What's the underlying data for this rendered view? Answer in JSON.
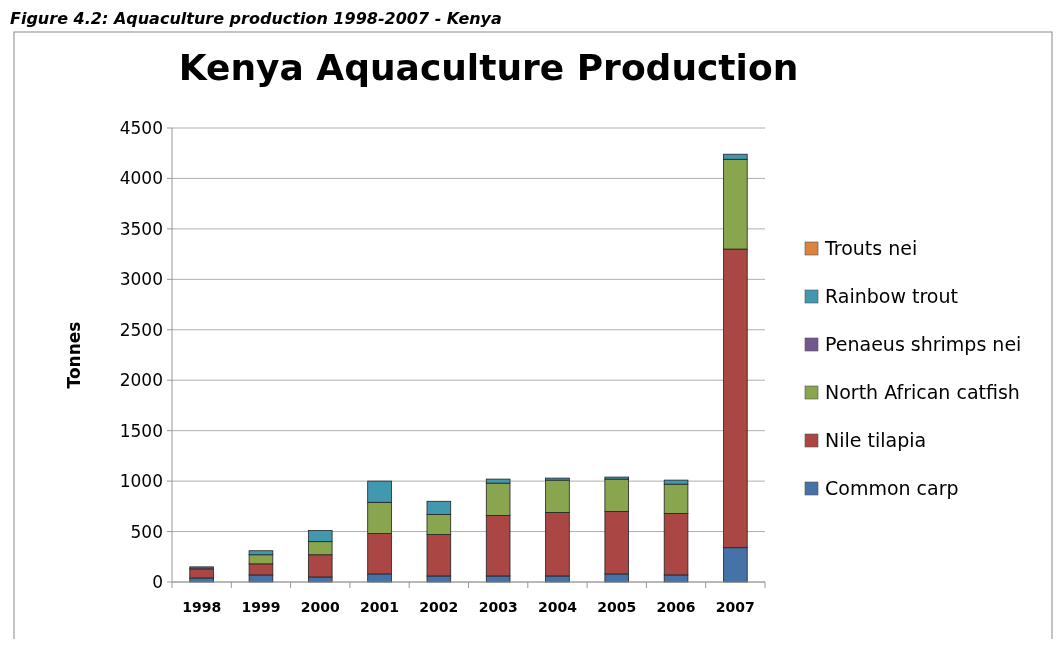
{
  "chart_data": {
    "type": "bar",
    "title": "Kenya Aquaculture Production",
    "ylabel": "Tonnes",
    "annotations": [
      "Figure 4.2: Aquaculture production 1998-2007 - Kenya"
    ],
    "categories": [
      "1998",
      "1999",
      "2000",
      "2001",
      "2002",
      "2003",
      "2004",
      "2005",
      "2006",
      "2007"
    ],
    "stacked": true,
    "series": [
      {
        "name": "Common carp",
        "color": "#4572a7",
        "values": [
          40,
          70,
          50,
          80,
          60,
          60,
          60,
          80,
          70,
          340
        ]
      },
      {
        "name": "Nile tilapia",
        "color": "#aa4643",
        "values": [
          90,
          110,
          220,
          400,
          410,
          600,
          630,
          620,
          610,
          2960
        ]
      },
      {
        "name": "North African catfish",
        "color": "#89a54e",
        "values": [
          0,
          90,
          130,
          310,
          200,
          320,
          320,
          320,
          290,
          890
        ]
      },
      {
        "name": "Penaeus shrimps nei",
        "color": "#71588f",
        "values": [
          20,
          0,
          0,
          0,
          0,
          0,
          0,
          0,
          0,
          0
        ]
      },
      {
        "name": "Rainbow trout",
        "color": "#4198af",
        "values": [
          0,
          40,
          110,
          210,
          130,
          40,
          20,
          20,
          40,
          50
        ]
      },
      {
        "name": "Trouts nei",
        "color": "#db843d",
        "values": [
          0,
          0,
          0,
          0,
          0,
          0,
          0,
          0,
          0,
          0
        ]
      }
    ],
    "ylim": [
      0,
      4500
    ],
    "yticks": [
      0,
      500,
      1000,
      1500,
      2000,
      2500,
      3000,
      3500,
      4000,
      4500
    ],
    "grid": "y",
    "legend": "right"
  }
}
